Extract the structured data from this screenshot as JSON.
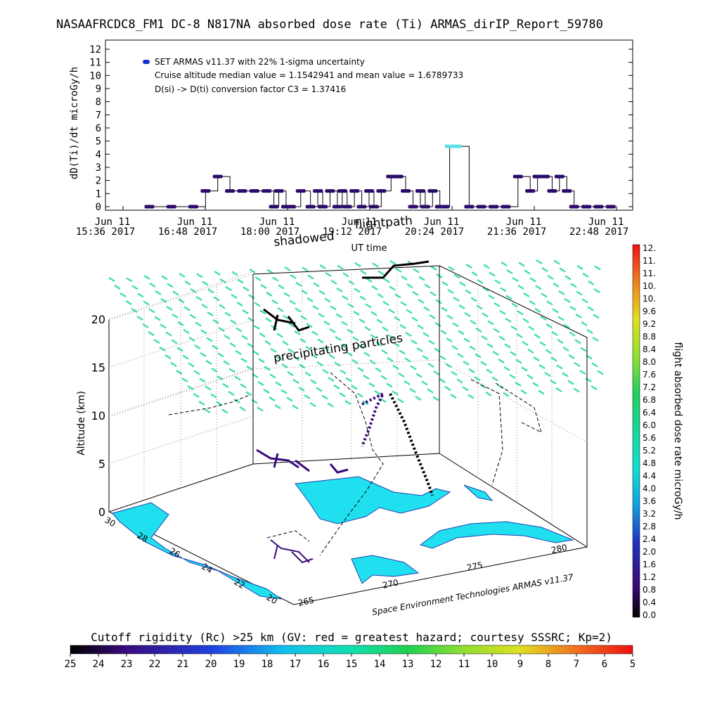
{
  "figure": {
    "title": "NASAAFRCDC8_FM1 DC-8   N817NA absorbed dose rate (Ti) ARMAS_dirIP_Report_59780",
    "credit": "Space Environment Technologies ARMAS v11.37",
    "colors": {
      "track_line": "#000000",
      "series_marker": "#2a0a6a",
      "legend_marker": "#1030d0",
      "cyan_top": "#60e0e0"
    }
  },
  "chart_data": [
    {
      "type": "line",
      "name": "dose-rate-timeseries",
      "ylabel": "dD(Ti)/dt microGy/h",
      "xlabel": "UT time",
      "ylim": [
        0,
        12
      ],
      "yticks": [
        "0",
        "1",
        "2",
        "3",
        "4",
        "5",
        "6",
        "7",
        "8",
        "9",
        "10",
        "11",
        "12"
      ],
      "xticks": [
        {
          "line1": "Jun 11",
          "line2": "15:36 2017"
        },
        {
          "line1": "Jun 11",
          "line2": "16:48 2017"
        },
        {
          "line1": "Jun 11",
          "line2": "18:00 2017"
        },
        {
          "line1": "Jun 11",
          "line2": "19:12 2017"
        },
        {
          "line1": "Jun 11",
          "line2": "20:24 2017"
        },
        {
          "line1": "Jun 11",
          "line2": "21:36 2017"
        },
        {
          "line1": "Jun 11",
          "line2": "22:48 2017"
        }
      ],
      "xlim": [
        "15:36",
        "22:48"
      ],
      "legend": {
        "entry": "SET ARMAS v11.37 with 22% 1-sigma uncertainty",
        "note1": "Cruise altitude median value = 1.1542941 and mean value = 1.6789733",
        "note2": "D(si) -> D(ti) conversion factor C3 = 1.37416"
      },
      "annotations": [
        "shadowed",
        "flightpath"
      ],
      "x": [
        "16:12",
        "16:30",
        "16:48",
        "16:58",
        "17:08",
        "17:18",
        "17:28",
        "17:38",
        "17:48",
        "17:54",
        "17:58",
        "18:04",
        "18:08",
        "18:16",
        "18:24",
        "18:30",
        "18:34",
        "18:40",
        "18:46",
        "18:50",
        "18:54",
        "19:00",
        "19:06",
        "19:12",
        "19:16",
        "19:22",
        "19:30",
        "19:36",
        "19:42",
        "19:48",
        "19:54",
        "19:58",
        "20:04",
        "20:10",
        "20:14",
        "20:18",
        "20:24",
        "20:34",
        "20:44",
        "20:54",
        "21:04",
        "21:14",
        "21:24",
        "21:30",
        "21:36",
        "21:42",
        "21:48",
        "21:54",
        "22:00",
        "22:10",
        "22:20",
        "22:30"
      ],
      "values": [
        0,
        0,
        0,
        1.2,
        2.3,
        1.2,
        1.2,
        1.2,
        1.2,
        0,
        1.2,
        0,
        0,
        1.2,
        0,
        1.2,
        0,
        1.2,
        0,
        1.2,
        0,
        1.2,
        0,
        1.2,
        0,
        1.2,
        2.3,
        2.3,
        1.2,
        0,
        1.2,
        0,
        1.2,
        0,
        0,
        4.6,
        4.6,
        0,
        0,
        0,
        0,
        2.3,
        1.2,
        2.3,
        2.3,
        1.2,
        2.3,
        1.2,
        0,
        0,
        0,
        0
      ]
    },
    {
      "type": "scatter",
      "name": "3d-flight-track",
      "zlabel": "Altitude (km)",
      "ztick_labels": [
        "0",
        "5",
        "10",
        "15",
        "20"
      ],
      "lat_tick_labels": [
        "30",
        "28",
        "26",
        "24",
        "22",
        "20"
      ],
      "lon_tick_labels": [
        "265",
        "270",
        "275",
        "280"
      ],
      "labels": [
        "precipitating particles"
      ],
      "colorbar": {
        "label": "flight absorbed dose rate microGy/h",
        "ticks": [
          "0.0",
          "0.4",
          "0.8",
          "1.2",
          "1.6",
          "2.0",
          "2.4",
          "2.8",
          "3.2",
          "3.6",
          "4.0",
          "4.4",
          "4.8",
          "5.2",
          "5.6",
          "6.0",
          "6.4",
          "6.8",
          "7.2",
          "7.6",
          "8.0",
          "8.4",
          "8.8",
          "9.2",
          "9.6",
          "10.",
          "10.",
          "11.",
          "11.",
          "12."
        ]
      }
    },
    {
      "type": "heatmap",
      "name": "cutoff-rigidity-colorbar",
      "title": "Cutoff rigidity (Rc) >25 km (GV: red = greatest hazard; courtesy SSSRC; Kp=2)",
      "ticks": [
        "25",
        "24",
        "23",
        "22",
        "21",
        "20",
        "19",
        "18",
        "17",
        "16",
        "15",
        "14",
        "13",
        "12",
        "11",
        "10",
        "9",
        "8",
        "7",
        "6",
        "5"
      ]
    }
  ]
}
